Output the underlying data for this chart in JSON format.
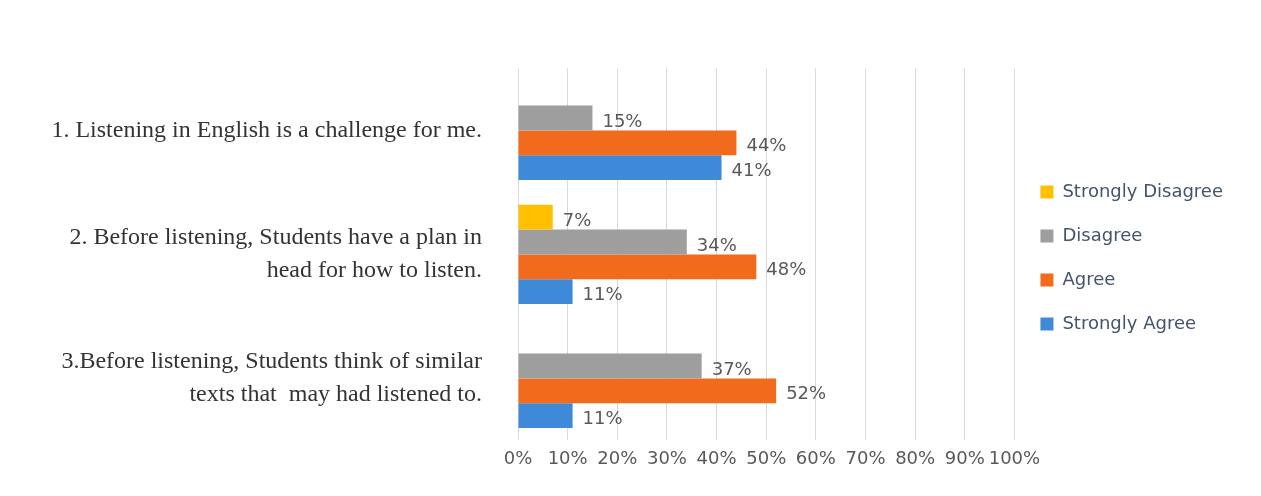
{
  "chart_data": {
    "type": "bar",
    "orientation": "horizontal",
    "categories": [
      "1. Listening in English is a challenge for me.",
      "2. Before listening, Students have a plan in head for how to listen.",
      "3.Before listening, Students think of similar texts that  may had listened to."
    ],
    "series": [
      {
        "name": "Strongly Disagree",
        "color": "#ffc000",
        "values": [
          null,
          7,
          null
        ],
        "value_labels": [
          null,
          "7%",
          null
        ]
      },
      {
        "name": "Disagree",
        "color": "#9e9e9e",
        "values": [
          15,
          34,
          37
        ],
        "value_labels": [
          "15%",
          "34%",
          "37%"
        ]
      },
      {
        "name": "Agree",
        "color": "#f26b1d",
        "values": [
          44,
          48,
          52
        ],
        "value_labels": [
          "44%",
          "48%",
          "52%"
        ]
      },
      {
        "name": "Strongly Agree",
        "color": "#3f8ad8",
        "values": [
          41,
          11,
          11
        ],
        "value_labels": [
          "41%",
          "11%",
          "11%"
        ]
      }
    ],
    "xlim": [
      0,
      100
    ],
    "xticks": [
      {
        "value": 0,
        "label": "0%"
      },
      {
        "value": 10,
        "label": "10%"
      },
      {
        "value": 20,
        "label": "20%"
      },
      {
        "value": 30,
        "label": "30%"
      },
      {
        "value": 40,
        "label": "40%"
      },
      {
        "value": 50,
        "label": "50%"
      },
      {
        "value": 60,
        "label": "60%"
      },
      {
        "value": 70,
        "label": "70%"
      },
      {
        "value": 80,
        "label": "80%"
      },
      {
        "value": 90,
        "label": "90%"
      },
      {
        "value": 100,
        "label": "100%"
      }
    ],
    "grid": "x",
    "legend": "right"
  }
}
